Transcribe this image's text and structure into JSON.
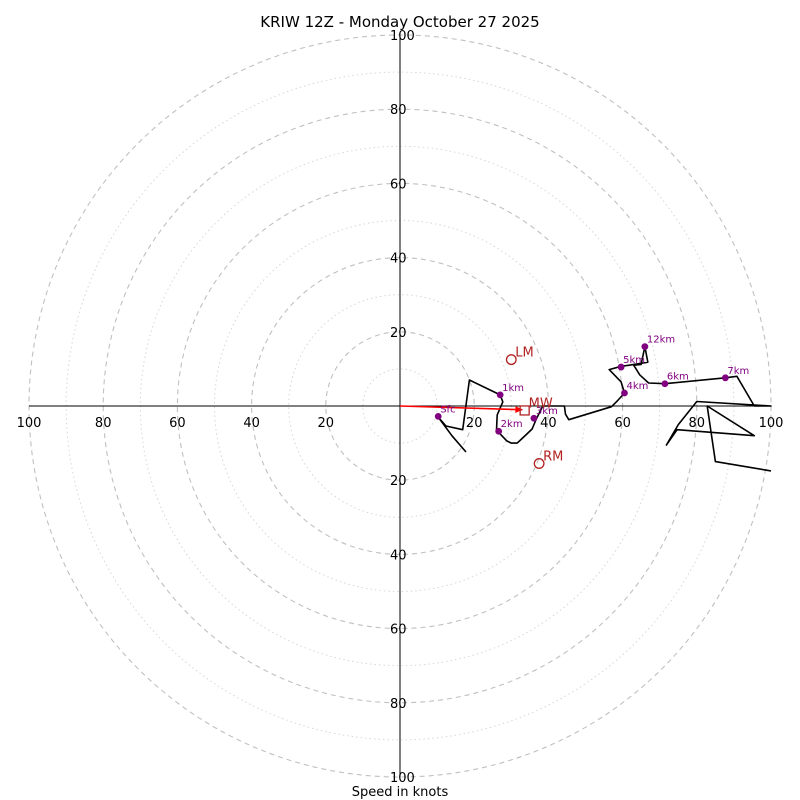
{
  "chart_data": {
    "type": "scatter",
    "title": "KRIW 12Z - Monday October 27 2025",
    "xlabel": "Speed in knots",
    "ylabel": "",
    "xlim": [
      -100,
      100
    ],
    "ylim": [
      -100,
      100
    ],
    "ring_step": 10,
    "major_ring_step": 20,
    "max_ring": 100,
    "xticks": [
      {
        "value": -100,
        "label": "100"
      },
      {
        "value": -80,
        "label": "80"
      },
      {
        "value": -60,
        "label": "60"
      },
      {
        "value": -40,
        "label": "40"
      },
      {
        "value": -20,
        "label": "20"
      },
      {
        "value": 20,
        "label": "20"
      },
      {
        "value": 40,
        "label": "40"
      },
      {
        "value": 60,
        "label": "60"
      },
      {
        "value": 80,
        "label": "80"
      },
      {
        "value": 100,
        "label": "100"
      }
    ],
    "yticks": [
      {
        "value": 100,
        "label": "100"
      },
      {
        "value": 80,
        "label": "80"
      },
      {
        "value": 60,
        "label": "60"
      },
      {
        "value": 40,
        "label": "40"
      },
      {
        "value": 20,
        "label": "20"
      },
      {
        "value": -20,
        "label": "20"
      },
      {
        "value": -40,
        "label": "40"
      },
      {
        "value": -60,
        "label": "60"
      },
      {
        "value": -80,
        "label": "80"
      },
      {
        "value": -100,
        "label": "100"
      }
    ],
    "trace": [
      [
        17.8,
        -12.4
      ],
      [
        14.0,
        -8.0
      ],
      [
        10.3,
        -3.0
      ],
      [
        12.4,
        -5.4
      ],
      [
        16.9,
        -6.4
      ],
      [
        18.7,
        7.0
      ],
      [
        27.0,
        3.0
      ],
      [
        27.7,
        1.1
      ],
      [
        26.2,
        -2.4
      ],
      [
        26.0,
        -6.5
      ],
      [
        28.8,
        -9.4
      ],
      [
        30.0,
        -10.0
      ],
      [
        31.6,
        -10.0
      ],
      [
        33.2,
        -8.5
      ],
      [
        35.6,
        -6.2
      ],
      [
        36.8,
        -3.4
      ],
      [
        38.5,
        0.0
      ],
      [
        44.3,
        0.0
      ],
      [
        44.6,
        -2.2
      ],
      [
        45.5,
        -3.7
      ],
      [
        57.0,
        -0.2
      ],
      [
        58.7,
        1.5
      ],
      [
        60.5,
        3.5
      ],
      [
        59.6,
        6.5
      ],
      [
        56.4,
        9.8
      ],
      [
        59.6,
        10.7
      ],
      [
        61.8,
        11.0
      ],
      [
        66.8,
        11.8
      ],
      [
        66.0,
        16.0
      ],
      [
        65.0,
        11.2
      ],
      [
        63.0,
        11.0
      ],
      [
        64.6,
        8.4
      ],
      [
        67.0,
        6.2
      ],
      [
        71.4,
        6.0
      ],
      [
        87.7,
        7.6
      ],
      [
        90.8,
        8.0
      ],
      [
        95.5,
        0.0
      ],
      [
        100.0,
        0.0
      ],
      [
        80.0,
        1.2
      ],
      [
        75.0,
        -5.0
      ],
      [
        71.8,
        -10.5
      ],
      [
        74.7,
        -6.4
      ],
      [
        95.5,
        -8.0
      ],
      [
        82.8,
        0.0
      ],
      [
        85.0,
        -15.0
      ],
      [
        100.0,
        -17.5
      ]
    ],
    "height_markers": [
      {
        "u": 10.3,
        "v": -2.8,
        "label": "Sfc"
      },
      {
        "u": 27.0,
        "v": 3.0,
        "label": "1km"
      },
      {
        "u": 26.6,
        "v": -6.8,
        "label": "2km"
      },
      {
        "u": 36.1,
        "v": -3.3,
        "label": "3km"
      },
      {
        "u": 60.5,
        "v": 3.5,
        "label": "4km"
      },
      {
        "u": 59.6,
        "v": 10.5,
        "label": "5km"
      },
      {
        "u": 71.4,
        "v": 6.0,
        "label": "6km"
      },
      {
        "u": 87.7,
        "v": 7.6,
        "label": "7km"
      },
      {
        "u": 66.0,
        "v": 16.0,
        "label": "12km"
      }
    ],
    "mean_wind_vector": {
      "from": [
        0.0,
        0.0
      ],
      "to": [
        33.0,
        -1.0
      ]
    },
    "storm_motion": [
      {
        "u": 30.0,
        "v": 12.5,
        "label": "LM",
        "marker": "circle"
      },
      {
        "u": 33.6,
        "v": -1.2,
        "label": "MW",
        "marker": "square"
      },
      {
        "u": 37.5,
        "v": -15.5,
        "label": "RM",
        "marker": "circle"
      }
    ],
    "colors": {
      "trace": "#000000",
      "height_marker": "#800080",
      "storm_motion": "#b22222",
      "mean_wind": "#ff0000",
      "ring_major": "#c0c0c0",
      "ring_minor": "#d6d6d6"
    }
  }
}
